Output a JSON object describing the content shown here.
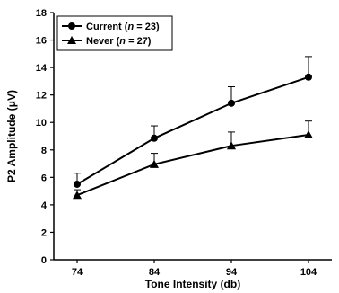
{
  "chart_data": {
    "type": "line",
    "xlabel": "Tone Intensity (db)",
    "ylabel": "P2 Amplitude (μV)",
    "categories": [
      "74",
      "84",
      "94",
      "104"
    ],
    "ylim": [
      0,
      18
    ],
    "yticks": [
      "0",
      "2",
      "4",
      "6",
      "8",
      "10",
      "12",
      "14",
      "16",
      "18"
    ],
    "legend_position": "top-left",
    "grid": false,
    "series": [
      {
        "name": "Current (n = 23)",
        "name_prefix": "Current (",
        "name_italic": "n",
        "name_suffix": " = 23)",
        "marker": "circle",
        "values": [
          5.5,
          8.85,
          11.4,
          13.3
        ],
        "error_upper": [
          0.8,
          0.9,
          1.2,
          1.5
        ]
      },
      {
        "name": "Never (n = 27)",
        "name_prefix": "Never (",
        "name_italic": "n",
        "name_suffix": " = 27)",
        "marker": "triangle",
        "values": [
          4.7,
          6.95,
          8.3,
          9.1
        ],
        "error_upper": [
          0.4,
          0.8,
          1.0,
          1.0
        ]
      }
    ]
  }
}
